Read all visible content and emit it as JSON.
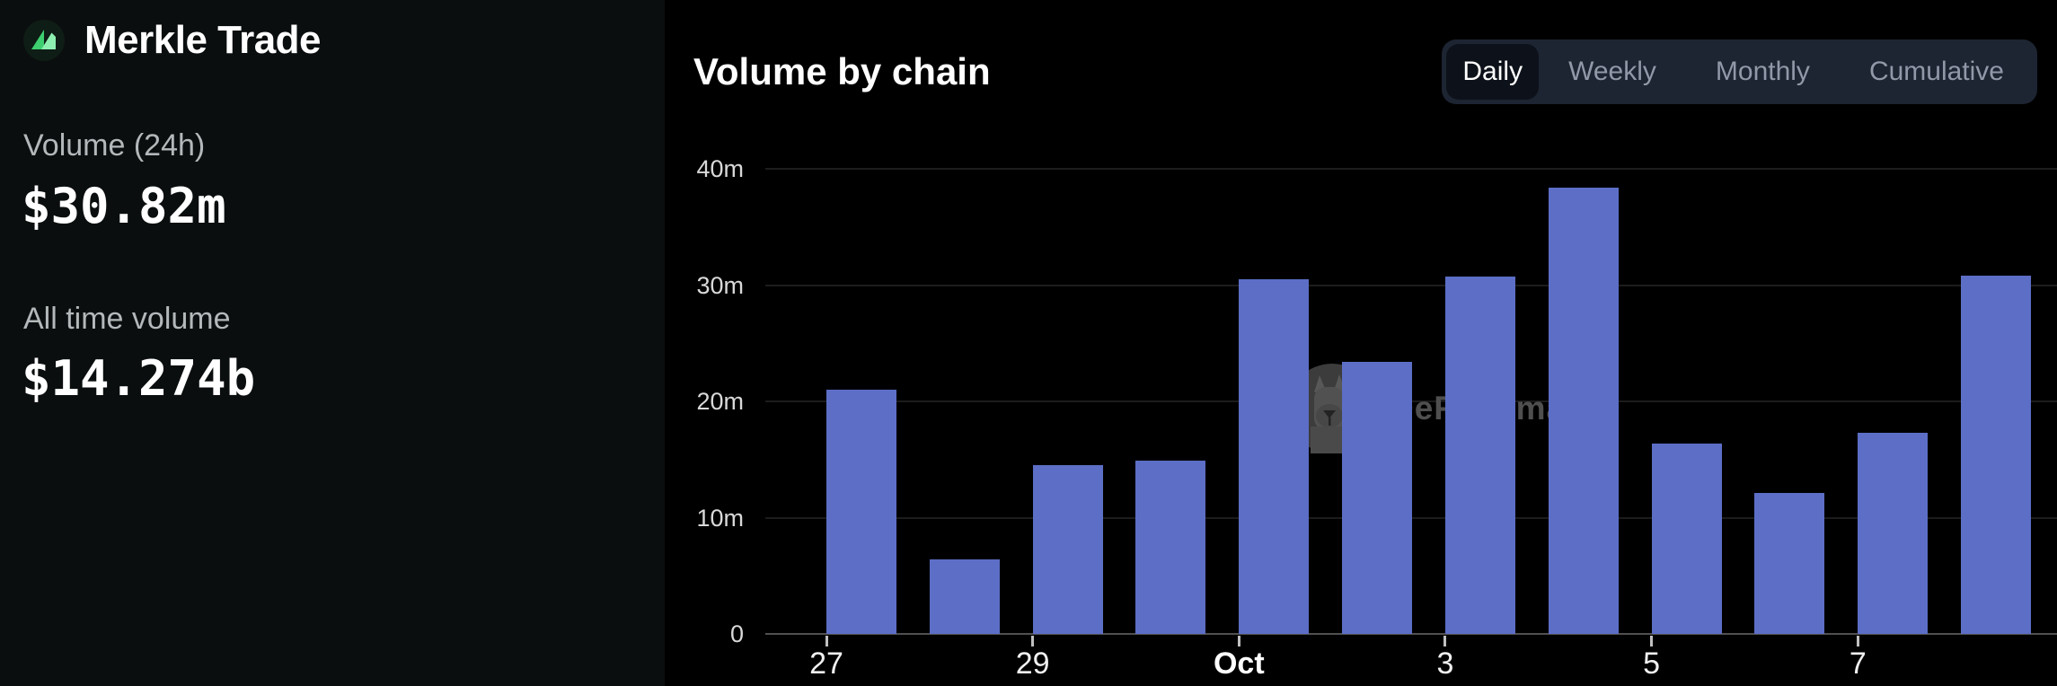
{
  "sidebar": {
    "brand": "Merkle Trade",
    "stats": [
      {
        "label": "Volume (24h)",
        "value": "$30.82m"
      },
      {
        "label": "All time volume",
        "value": "$14.274b"
      }
    ]
  },
  "header": {
    "title": "Volume by chain"
  },
  "tabs": {
    "items": [
      "Daily",
      "Weekly",
      "Monthly",
      "Cumulative"
    ],
    "active": "Daily"
  },
  "watermark": {
    "text": "DeFiLlama",
    "icon": "defillama-llama-icon"
  },
  "colors": {
    "sidebar_bg": "#0b0e0f",
    "chart_bg": "#000000",
    "bar": "#5c6ec6",
    "gridline": "#1c1c1c",
    "axis_line": "#505050",
    "logo_green_left": "#3ecf70",
    "logo_green_right": "#8df0b0",
    "tab_bg": "#1d2432",
    "tab_active_bg": "#0d1119",
    "muted_text": "#b3b8ba"
  },
  "chart_data": {
    "type": "bar",
    "title": "Volume by chain",
    "categories": [
      "Sep 27",
      "Sep 28",
      "Sep 29",
      "Sep 30",
      "Oct 1",
      "Oct 2",
      "Oct 3",
      "Oct 4",
      "Oct 5",
      "Oct 6",
      "Oct 7",
      "Oct 8"
    ],
    "values": [
      21.0,
      6.4,
      14.5,
      14.9,
      30.5,
      23.4,
      30.7,
      38.4,
      16.4,
      12.1,
      17.3,
      30.8
    ],
    "unit": "m (USD millions)",
    "ylim": [
      0,
      40
    ],
    "y_ticks": [
      {
        "value": 40,
        "label": "40m"
      },
      {
        "value": 30,
        "label": "30m"
      },
      {
        "value": 20,
        "label": "20m"
      },
      {
        "value": 10,
        "label": "10m"
      },
      {
        "value": 0,
        "label": "0"
      }
    ],
    "x_ticks": [
      {
        "index": 0,
        "label": "27"
      },
      {
        "index": 2,
        "label": "29"
      },
      {
        "index": 4,
        "label": "Oct",
        "bold": true
      },
      {
        "index": 6,
        "label": "3"
      },
      {
        "index": 8,
        "label": "5"
      },
      {
        "index": 10,
        "label": "7"
      }
    ],
    "grid": true,
    "legend": false
  }
}
